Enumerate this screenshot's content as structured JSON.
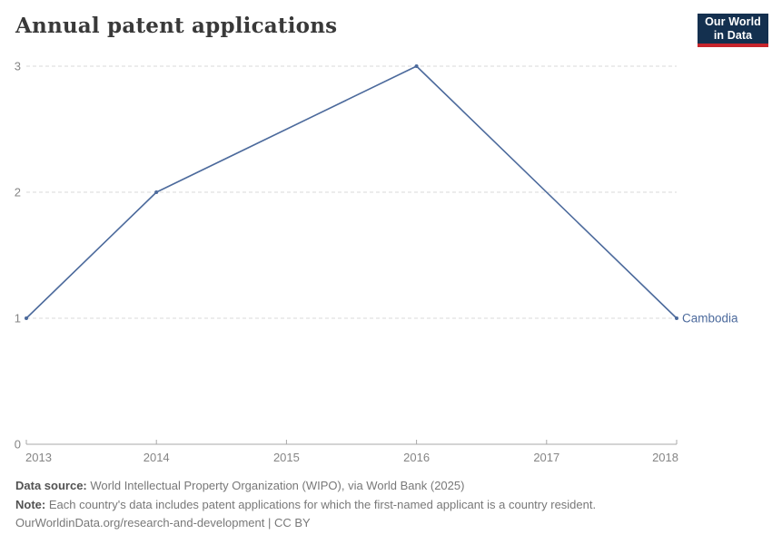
{
  "header": {
    "title": "Annual patent applications"
  },
  "logo": {
    "line1": "Our World",
    "line2": "in Data"
  },
  "colors": {
    "accent_line": "#4c6a9c",
    "grid": "#d9d9d9",
    "axis": "#a8a8a8",
    "tick_label_color": "#858585",
    "title_color": "#393939",
    "logo_bg": "#14304f",
    "logo_strip": "#c7252c",
    "footer_text": "#787878",
    "footer_bold": "#525252"
  },
  "chart_data": {
    "type": "line",
    "title": "Annual patent applications",
    "series": [
      {
        "name": "Cambodia",
        "color": "#4c6a9c",
        "points": [
          {
            "x": 2013,
            "y": 1
          },
          {
            "x": 2014,
            "y": 2
          },
          {
            "x": 2016,
            "y": 3
          },
          {
            "x": 2018,
            "y": 1
          }
        ]
      }
    ],
    "x_ticks": [
      2013,
      2014,
      2015,
      2016,
      2017,
      2018
    ],
    "y_ticks": [
      0,
      1,
      2,
      3
    ],
    "xlim": [
      2013,
      2018
    ],
    "ylim": [
      0,
      3
    ],
    "xlabel": "",
    "ylabel": "",
    "grid": "horizontal-dashed",
    "legend_position": "end-of-line-label"
  },
  "footer": {
    "data_source_label": "Data source:",
    "data_source_text": "World Intellectual Property Organization (WIPO), via World Bank (2025)",
    "note_label": "Note:",
    "note_text": "Each country's data includes patent applications for which the first-named applicant is a country resident.",
    "license_text": "OurWorldinData.org/research-and-development | CC BY"
  }
}
